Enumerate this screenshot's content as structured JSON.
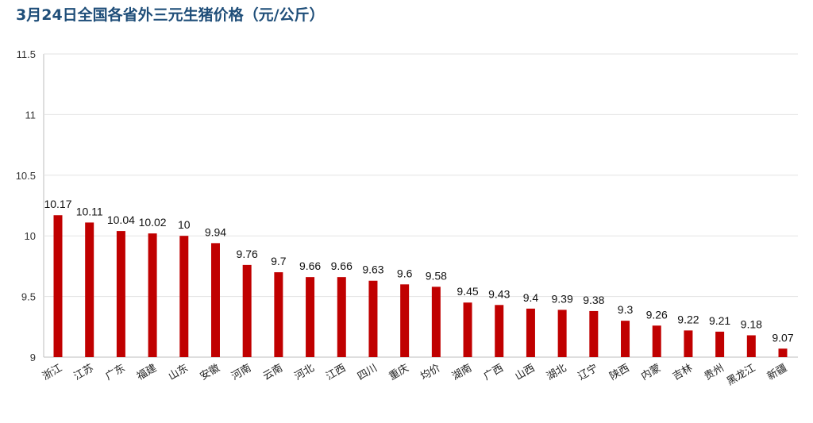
{
  "chart_data": {
    "type": "bar",
    "title": "3月24日全国各省外三元生猪价格（元/公斤）",
    "categories": [
      "浙江",
      "江苏",
      "广东",
      "福建",
      "山东",
      "安徽",
      "河南",
      "云南",
      "河北",
      "江西",
      "四川",
      "重庆",
      "均价",
      "湖南",
      "广西",
      "山西",
      "湖北",
      "辽宁",
      "陕西",
      "内蒙",
      "吉林",
      "贵州",
      "黑龙江",
      "新疆"
    ],
    "values": [
      10.17,
      10.11,
      10.04,
      10.02,
      10,
      9.94,
      9.76,
      9.7,
      9.66,
      9.66,
      9.63,
      9.6,
      9.58,
      9.45,
      9.43,
      9.4,
      9.39,
      9.38,
      9.3,
      9.26,
      9.22,
      9.21,
      9.18,
      9.07
    ],
    "value_labels": [
      "10.17",
      "10.11",
      "10.04",
      "10.02",
      "10",
      "9.94",
      "9.76",
      "9.7",
      "9.66",
      "9.66",
      "9.63",
      "9.6",
      "9.58",
      "9.45",
      "9.43",
      "9.4",
      "9.39",
      "9.38",
      "9.3",
      "9.26",
      "9.22",
      "9.21",
      "9.18",
      "9.07"
    ],
    "ylim": [
      9,
      11.5
    ],
    "yticks": [
      "9",
      "9.5",
      "10",
      "10.5",
      "11",
      "11.5"
    ],
    "grid": true,
    "bar_color": "#c00000",
    "title_color": "#1f4e79"
  }
}
